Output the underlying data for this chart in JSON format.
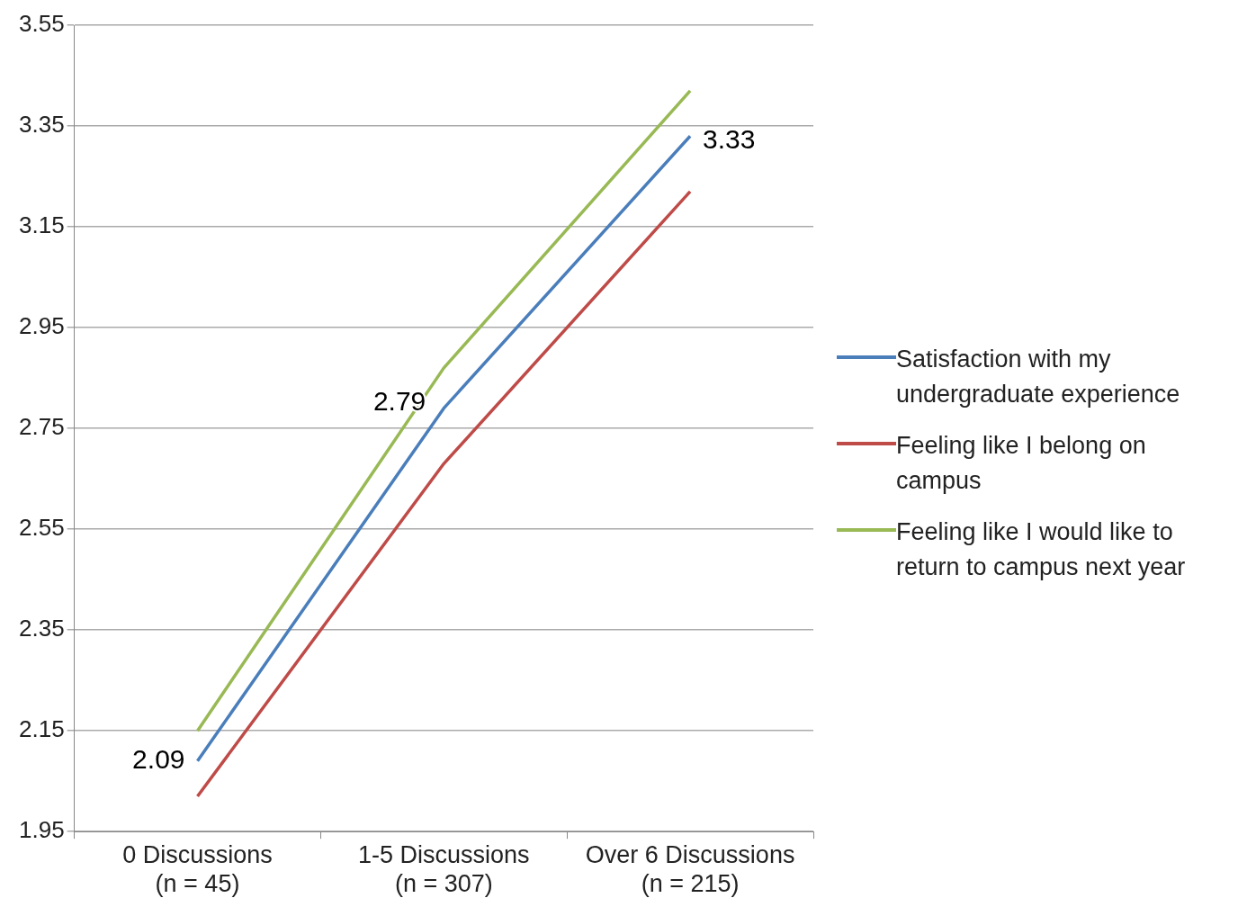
{
  "chart_data": {
    "type": "line",
    "categories": [
      "0 Discussions (n = 45)",
      "1-5 Discussions (n = 307)",
      "Over 6 Discussions (n = 215)"
    ],
    "series": [
      {
        "name": "Satisfaction with my undergraduate experience",
        "color": "#4a7ebb",
        "values": [
          2.09,
          2.79,
          3.33
        ],
        "value_labels": [
          "2.09",
          "2.79",
          "3.33"
        ]
      },
      {
        "name": "Feeling like I belong on campus",
        "color": "#be4b48",
        "values": [
          2.02,
          2.68,
          3.22
        ]
      },
      {
        "name": "Feeling like I would like to return to campus next year",
        "color": "#98b954",
        "values": [
          2.15,
          2.87,
          3.42
        ]
      }
    ],
    "ylim": [
      1.95,
      3.55
    ],
    "yticks": [
      1.95,
      2.15,
      2.35,
      2.55,
      2.75,
      2.95,
      3.15,
      3.35,
      3.55
    ],
    "grid": "y",
    "legend": "right",
    "marker": "none"
  }
}
